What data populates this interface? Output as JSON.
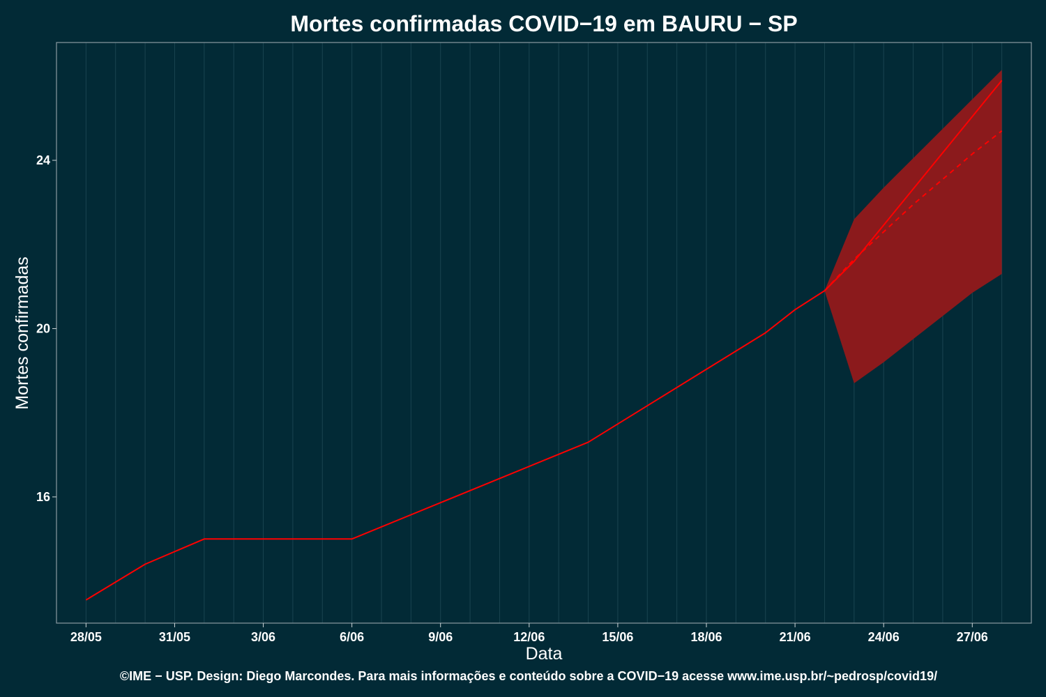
{
  "chart_data": {
    "type": "line",
    "title": "Mortes confirmadas COVID−19 em BAURU − SP",
    "xlabel": "Data",
    "ylabel": "Mortes confirmadas",
    "caption": "©IME − USP. Design: Diego Marcondes. Para mais informações e conteúdo sobre a COVID−19 acesse www.ime.usp.br/~pedrosp/covid19/",
    "x_ticks": [
      "28/05",
      "31/05",
      "3/06",
      "6/06",
      "9/06",
      "12/06",
      "15/06",
      "18/06",
      "21/06",
      "24/06",
      "27/06"
    ],
    "y_ticks": [
      16,
      20,
      24
    ],
    "ylim": [
      13,
      26.8
    ],
    "xlim": [
      "2020-05-27",
      "2020-06-29"
    ],
    "grid": true,
    "series": [
      {
        "style": "solid",
        "x": [
          "2020-05-28",
          "2020-05-30",
          "2020-06-01",
          "2020-06-02",
          "2020-06-03",
          "2020-06-04",
          "2020-06-05",
          "2020-06-06",
          "2020-06-14",
          "2020-06-20",
          "2020-06-21",
          "2020-06-22",
          "2020-06-23",
          "2020-06-28"
        ],
        "values": [
          13.55,
          14.4,
          15.0,
          15.0,
          15.0,
          15.0,
          15.0,
          15.0,
          17.3,
          19.9,
          20.45,
          20.9,
          21.6,
          25.9
        ]
      },
      {
        "style": "dashed",
        "x": [
          "2020-06-22",
          "2020-06-23",
          "2020-06-24",
          "2020-06-25",
          "2020-06-26",
          "2020-06-27",
          "2020-06-28"
        ],
        "values": [
          20.9,
          21.65,
          22.3,
          22.95,
          23.55,
          24.15,
          24.7
        ]
      }
    ],
    "band": {
      "x": [
        "2020-06-22",
        "2020-06-23",
        "2020-06-24",
        "2020-06-25",
        "2020-06-26",
        "2020-06-27",
        "2020-06-28"
      ],
      "lower": [
        20.9,
        18.7,
        19.2,
        19.75,
        20.3,
        20.85,
        21.3
      ],
      "upper": [
        20.9,
        22.6,
        23.35,
        24.05,
        24.75,
        25.45,
        26.15
      ]
    },
    "colors": {
      "background": "#022a36",
      "panel_border": "#8a9aa0",
      "grid": "#1a4450",
      "line": "#ff0000",
      "band": "#8b1a1c"
    }
  }
}
